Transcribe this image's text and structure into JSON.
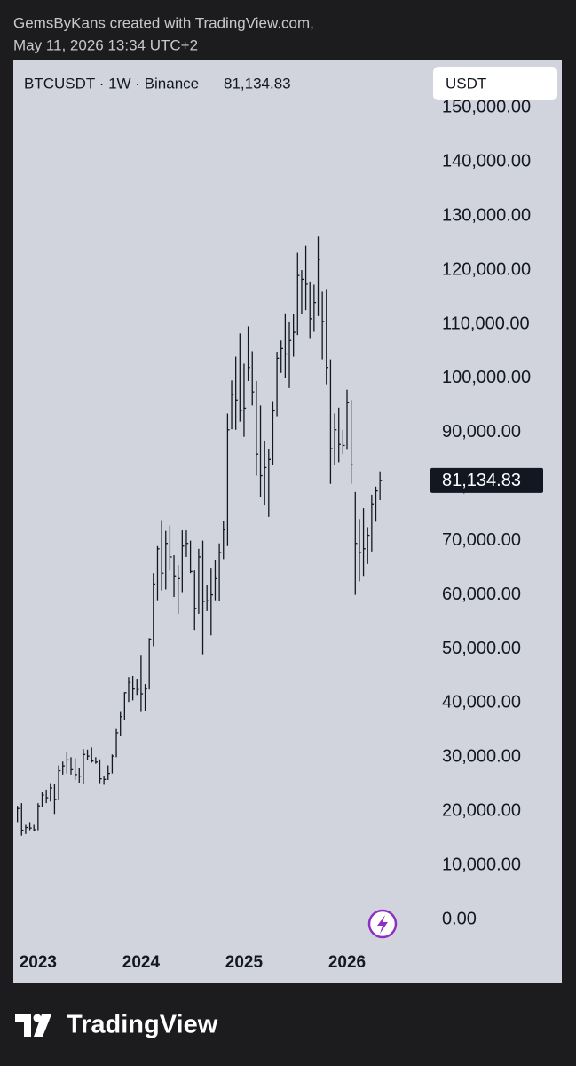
{
  "header": {
    "line1": "GemsByKans created with TradingView.com,",
    "line2": "May 11, 2026 13:34 UTC+2"
  },
  "currency_button": "USDT",
  "footer_brand": "TradingView",
  "chart_data": {
    "type": "ohlc",
    "symbol": "BTCUSDT · 1W · Binance",
    "color": "#131722",
    "last_price": {
      "value": 81134.83,
      "label": "81,134.83"
    },
    "xlim": [
      2022.76,
      2026.81
    ],
    "xticks": [
      2023,
      2024,
      2025,
      2026
    ],
    "ylim": [
      -11800,
      157600
    ],
    "yticks": [
      {
        "value": 0,
        "label": "0.00"
      },
      {
        "value": 10000,
        "label": "10,000.00"
      },
      {
        "value": 20000,
        "label": "20,000.00"
      },
      {
        "value": 30000,
        "label": "30,000.00"
      },
      {
        "value": 40000,
        "label": "40,000.00"
      },
      {
        "value": 50000,
        "label": "50,000.00"
      },
      {
        "value": 60000,
        "label": "60,000.00"
      },
      {
        "value": 70000,
        "label": "70,000.00"
      },
      {
        "value": 80000,
        "label": "80,000.00"
      },
      {
        "value": 90000,
        "label": "90,000.00"
      },
      {
        "value": 100000,
        "label": "100,000.00"
      },
      {
        "value": 110000,
        "label": "110,000.00"
      },
      {
        "value": 120000,
        "label": "120,000.00"
      },
      {
        "value": 130000,
        "label": "130,000.00"
      },
      {
        "value": 140000,
        "label": "140,000.00"
      },
      {
        "value": 150000,
        "label": "150,000.00"
      }
    ],
    "x": [
      2022.8,
      2022.84,
      2022.88,
      2022.92,
      2022.96,
      2023.0,
      2023.04,
      2023.08,
      2023.12,
      2023.16,
      2023.2,
      2023.24,
      2023.28,
      2023.32,
      2023.36,
      2023.4,
      2023.44,
      2023.48,
      2023.52,
      2023.56,
      2023.6,
      2023.64,
      2023.68,
      2023.72,
      2023.76,
      2023.8,
      2023.84,
      2023.88,
      2023.92,
      2023.96,
      2024.0,
      2024.04,
      2024.08,
      2024.12,
      2024.16,
      2024.2,
      2024.24,
      2024.28,
      2024.32,
      2024.36,
      2024.4,
      2024.44,
      2024.48,
      2024.52,
      2024.56,
      2024.6,
      2024.64,
      2024.68,
      2024.72,
      2024.76,
      2024.8,
      2024.84,
      2024.88,
      2024.92,
      2024.96,
      2025.0,
      2025.04,
      2025.08,
      2025.12,
      2025.16,
      2025.2,
      2025.24,
      2025.28,
      2025.32,
      2025.36,
      2025.4,
      2025.44,
      2025.48,
      2025.52,
      2025.56,
      2025.6,
      2025.64,
      2025.68,
      2025.72,
      2025.76,
      2025.8,
      2025.84,
      2025.88,
      2025.92,
      2025.96,
      2026.0,
      2026.04,
      2026.08,
      2026.12,
      2026.16,
      2026.2,
      2026.24,
      2026.28,
      2026.32
    ],
    "high": [
      21000,
      21500,
      17500,
      18000,
      17500,
      21500,
      23500,
      24000,
      25200,
      25000,
      28500,
      29200,
      31000,
      30000,
      29800,
      28000,
      31500,
      31400,
      31800,
      30000,
      29600,
      26500,
      28500,
      30500,
      35200,
      38500,
      42000,
      44800,
      45000,
      44500,
      48900,
      43500,
      52000,
      64000,
      69000,
      73800,
      71800,
      72800,
      67300,
      65500,
      71900,
      71900,
      70000,
      64500,
      68500,
      70000,
      61800,
      65000,
      66500,
      69500,
      73600,
      93500,
      99600,
      104000,
      108300,
      102700,
      109600,
      105000,
      99500,
      95000,
      88500,
      87000,
      95800,
      104900,
      107000,
      112000,
      110500,
      111900,
      123200,
      120000,
      124500,
      117900,
      117300,
      126200,
      116000,
      116500,
      103500,
      93500,
      94600,
      90500,
      97900,
      96000,
      79000,
      74000,
      76000,
      72500,
      78500,
      80000,
      82800
    ],
    "low": [
      18000,
      15500,
      15800,
      16500,
      16400,
      16500,
      20800,
      21500,
      21800,
      19500,
      22000,
      26800,
      27000,
      26800,
      25800,
      25300,
      25000,
      29500,
      29000,
      28800,
      25200,
      24900,
      25800,
      27000,
      30000,
      34000,
      36800,
      40200,
      40500,
      41500,
      38500,
      38600,
      42500,
      50500,
      59000,
      60800,
      61000,
      64500,
      59600,
      56500,
      60500,
      67000,
      64000,
      53500,
      56500,
      49000,
      57000,
      52500,
      59000,
      58900,
      66600,
      69000,
      90600,
      90500,
      92000,
      89200,
      99500,
      95000,
      82000,
      78000,
      76500,
      74400,
      84000,
      93000,
      101000,
      100000,
      98200,
      104000,
      108000,
      111800,
      112600,
      107300,
      108600,
      111500,
      103500,
      98900,
      80500,
      84000,
      84500,
      86000,
      86800,
      80500,
      60000,
      62500,
      63500,
      65700,
      68000,
      73500,
      77500
    ],
    "close": [
      20500,
      16500,
      17000,
      16900,
      16600,
      21000,
      23000,
      22500,
      24300,
      22200,
      27500,
      28400,
      29500,
      27700,
      26800,
      26500,
      30500,
      30200,
      29300,
      29100,
      26000,
      25900,
      27000,
      30200,
      34500,
      37500,
      41900,
      43800,
      42600,
      42500,
      41700,
      42600,
      51800,
      62000,
      68500,
      64000,
      69500,
      67000,
      63500,
      63000,
      69000,
      69500,
      64300,
      57500,
      67000,
      58800,
      58900,
      60000,
      63000,
      67800,
      72000,
      90500,
      97000,
      96000,
      94000,
      94500,
      102000,
      97500,
      86000,
      82000,
      83500,
      85000,
      94000,
      103700,
      105500,
      104500,
      107000,
      108500,
      119000,
      118300,
      117400,
      111000,
      114000,
      122000,
      110500,
      102000,
      87000,
      90500,
      87800,
      87600,
      95500,
      84000,
      69500,
      67800,
      68500,
      71000,
      76800,
      79200,
      81134.83
    ]
  }
}
